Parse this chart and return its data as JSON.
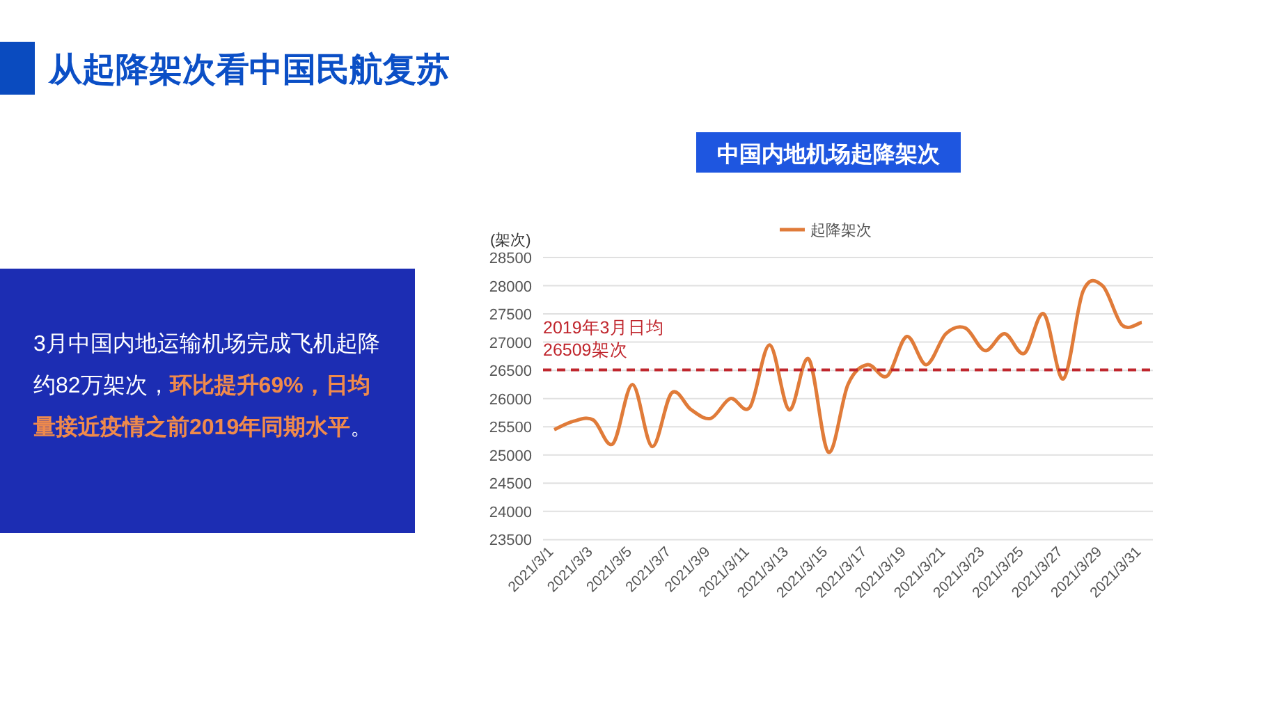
{
  "chart_data": {
    "type": "line",
    "title": "从起降架次看中国民航复苏",
    "subtitle": "中国内地机场起降架次",
    "ylabel": "(架次)",
    "categories": [
      "2021/3/1",
      null,
      "2021/3/3",
      null,
      "2021/3/5",
      null,
      "2021/3/7",
      null,
      "2021/3/9",
      null,
      "2021/3/11",
      null,
      "2021/3/13",
      null,
      "2021/3/15",
      null,
      "2021/3/17",
      null,
      "2021/3/19",
      null,
      "2021/3/21",
      null,
      "2021/3/23",
      null,
      "2021/3/25",
      null,
      "2021/3/27",
      null,
      "2021/3/29",
      null,
      "2021/3/31"
    ],
    "series": [
      {
        "name": "起降架次",
        "color": "#e07b39",
        "values": [
          25450,
          25600,
          25620,
          25200,
          26250,
          25150,
          26100,
          25800,
          25650,
          26000,
          25850,
          26950,
          25800,
          26700,
          25050,
          26250,
          26600,
          26400,
          27100,
          26600,
          27150,
          27250,
          26850,
          27150,
          26800,
          27500,
          26350,
          27900,
          28000,
          27300,
          27350
        ]
      }
    ],
    "ylim": [
      23500,
      28500
    ],
    "yticks": [
      23500,
      24000,
      24500,
      25000,
      25500,
      26000,
      26500,
      27000,
      27500,
      28000,
      28500
    ],
    "grid": "y",
    "legend": "top",
    "marker": "none",
    "line_style": "solid",
    "ref_lines": [
      {
        "axis": "y",
        "value": 26509,
        "label": "2019年3月日均\n26509架次",
        "color": "#c0262d",
        "line_style": "dashed"
      }
    ],
    "annotations": [
      "3月中国内地运输机场完成飞机起降约82万架次，",
      "环比提升69%，日均量接近疫情之前2019年同期水平",
      "。"
    ]
  }
}
